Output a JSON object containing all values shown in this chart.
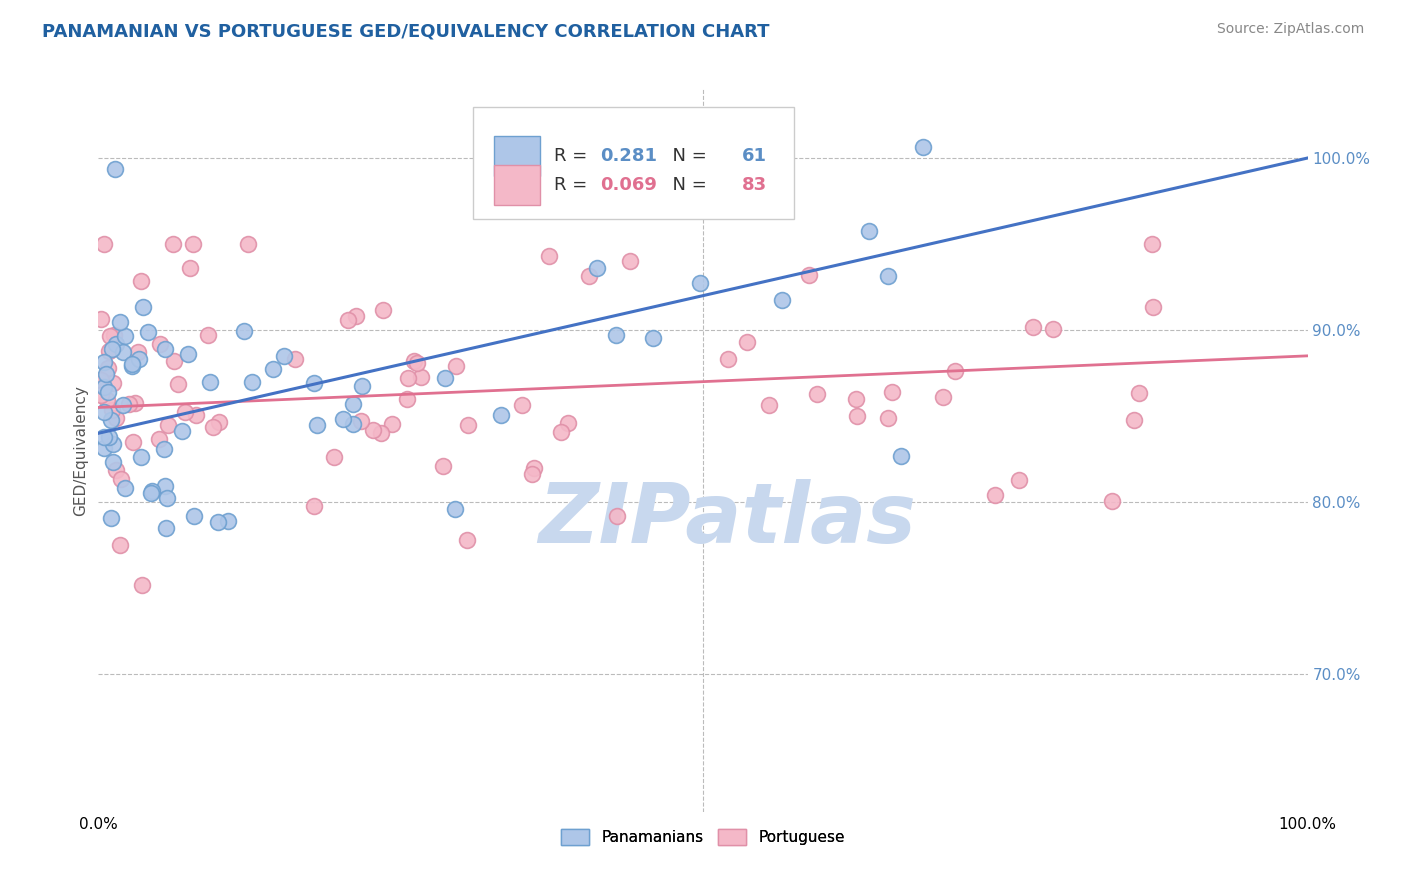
{
  "title": "PANAMANIAN VS PORTUGUESE GED/EQUIVALENCY CORRELATION CHART",
  "source_text": "Source: ZipAtlas.com",
  "ylabel": "GED/Equivalency",
  "xmin": 0.0,
  "xmax": 100.0,
  "ymin": 62.0,
  "ymax": 104.0,
  "yticks": [
    70.0,
    80.0,
    90.0,
    100.0
  ],
  "r_blue": 0.281,
  "n_blue": 61,
  "r_pink": 0.069,
  "n_pink": 83,
  "blue_line_color": "#4472C4",
  "pink_line_color": "#E07090",
  "dot_blue_face": "#AEC6E8",
  "dot_blue_edge": "#6EA0D0",
  "dot_pink_face": "#F4B8C8",
  "dot_pink_edge": "#E090A8",
  "grid_color": "#BBBBBB",
  "background_color": "#FFFFFF",
  "title_color": "#2060A0",
  "source_color": "#888888",
  "ytick_color": "#5B8EC5",
  "title_fontsize": 13,
  "source_fontsize": 10,
  "ylabel_fontsize": 11,
  "tick_fontsize": 11,
  "watermark_color": "#C8D8EE",
  "watermark_fontsize": 60,
  "legend_r_color": "#5B8EC5",
  "legend_pink_r_color": "#E07090"
}
